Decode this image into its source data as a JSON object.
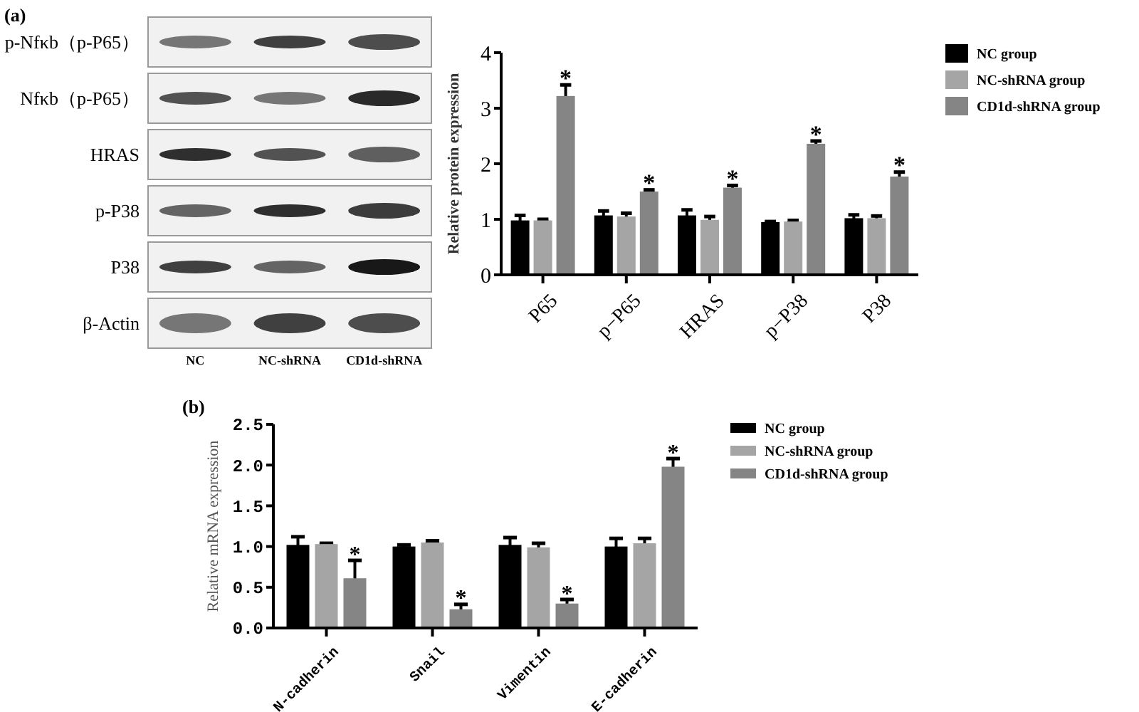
{
  "chart_data": [
    {
      "type": "other",
      "title": "(a)",
      "categories": [
        "NC",
        "NC-shRNA",
        "CD1d-shRNA"
      ],
      "annotations": [
        "p-Nfκb（p-P65）",
        "Nfκb（p-P65）",
        "HRAS",
        "p-P38",
        "P38",
        "β-Actin"
      ]
    },
    {
      "type": "bar",
      "ylabel": "Relative protein expression",
      "categories": [
        "P65",
        "p−P65",
        "HRAS",
        "p−P38",
        "P38"
      ],
      "series": [
        {
          "name": "NC group",
          "color": "#000000",
          "values": [
            0.98,
            1.07,
            1.07,
            0.95,
            1.02
          ],
          "errors": [
            0.09,
            0.08,
            0.1,
            0.01,
            0.06
          ]
        },
        {
          "name": "NC-shRNA group",
          "color": "#a5a5a5",
          "values": [
            0.98,
            1.05,
            0.99,
            0.96,
            1.02
          ],
          "errors": [
            0.02,
            0.06,
            0.06,
            0.02,
            0.04
          ]
        },
        {
          "name": "CD1d-shRNA group",
          "color": "#858585",
          "values": [
            3.22,
            1.5,
            1.57,
            2.36,
            1.77
          ],
          "errors": [
            0.2,
            0.03,
            0.04,
            0.05,
            0.08
          ]
        }
      ],
      "ylim": [
        0,
        4
      ],
      "yticks": [
        0,
        1,
        2,
        3,
        4
      ],
      "legend": "top right",
      "annotations": [
        "*",
        "*",
        "*",
        "*",
        "*"
      ]
    },
    {
      "type": "bar",
      "title": "(b)",
      "ylabel": "Relative mRNA expression",
      "categories": [
        "N-cadherin",
        "Snail",
        "Vimentin",
        "E-cadherin"
      ],
      "series": [
        {
          "name": "NC group",
          "color": "#000000",
          "values": [
            1.02,
            1.0,
            1.02,
            1.0
          ],
          "errors": [
            0.1,
            0.02,
            0.09,
            0.1
          ]
        },
        {
          "name": "NC-shRNA group",
          "color": "#a5a5a5",
          "values": [
            1.03,
            1.05,
            0.99,
            1.04
          ],
          "errors": [
            0.01,
            0.02,
            0.05,
            0.06
          ]
        },
        {
          "name": "CD1d-shRNA group",
          "color": "#858585",
          "values": [
            0.61,
            0.23,
            0.3,
            1.98
          ],
          "errors": [
            0.22,
            0.06,
            0.05,
            0.1
          ]
        }
      ],
      "ylim": [
        0,
        2.5
      ],
      "yticks": [
        {
          "value": 0,
          "label": "0.0"
        },
        {
          "value": 0.5,
          "label": "0.5"
        },
        {
          "value": 1,
          "label": "1.0"
        },
        {
          "value": 1.5,
          "label": "1.5"
        },
        {
          "value": 2,
          "label": "2.0"
        },
        {
          "value": 2.5,
          "label": "2.5"
        }
      ],
      "legend": "top right",
      "annotations": [
        "*",
        "*",
        "*",
        "*"
      ]
    }
  ]
}
